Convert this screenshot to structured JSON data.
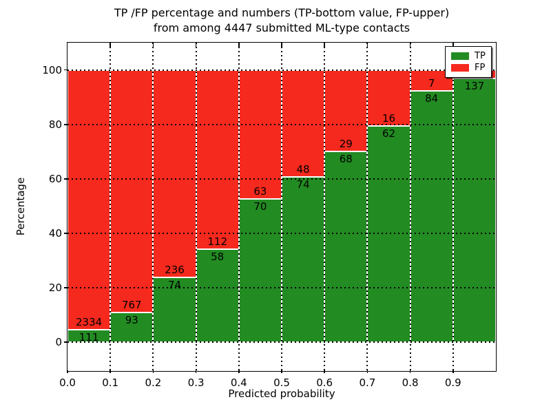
{
  "figure": {
    "title_line1": "TP /FP percentage and numbers (TP-bottom value, FP-upper)",
    "title_line2": "from among 4447 submitted ML-type contacts",
    "xlabel": "Predicted probability",
    "ylabel": "Percentage"
  },
  "colors": {
    "tp_green": "#228b22",
    "fp_red": "#f5291d",
    "bar_edge": "#ffffff",
    "grid": "#000000",
    "background": "#ffffff"
  },
  "legend": {
    "position": "upper right",
    "items": [
      {
        "label": "TP",
        "color": "#228b22"
      },
      {
        "label": "FP",
        "color": "#f5291d"
      }
    ]
  },
  "chart_data": {
    "type": "bar",
    "stacked": true,
    "normalized": "each bin stacks to 100%",
    "title": "TP /FP percentage and numbers (TP-bottom value, FP-upper) from among 4447 submitted ML-type contacts",
    "xlabel": "Predicted probability",
    "ylabel": "Percentage",
    "total_contacts": 4447,
    "x_tick_labels": [
      "0.0",
      "0.1",
      "0.2",
      "0.3",
      "0.4",
      "0.5",
      "0.6",
      "0.7",
      "0.8",
      "0.9"
    ],
    "y_tick_values": [
      0,
      20,
      40,
      60,
      80,
      100
    ],
    "xlim": [
      0.0,
      1.0
    ],
    "ylim": [
      -10,
      110
    ],
    "bin_width": 0.1,
    "grid": "dotted black, drawn above bars",
    "categories": [
      "0.0-0.1",
      "0.1-0.2",
      "0.2-0.3",
      "0.3-0.4",
      "0.4-0.5",
      "0.5-0.6",
      "0.6-0.7",
      "0.7-0.8",
      "0.8-0.9",
      "0.9-1.0"
    ],
    "series": [
      {
        "name": "TP",
        "color": "#228b22",
        "counts": [
          111,
          93,
          74,
          58,
          70,
          74,
          68,
          62,
          84,
          137
        ],
        "pct": [
          4.5,
          10.8,
          23.9,
          34.1,
          52.6,
          60.7,
          70.1,
          79.5,
          92.3,
          97.0
        ]
      },
      {
        "name": "FP",
        "color": "#f5291d",
        "counts": [
          2334,
          767,
          236,
          112,
          63,
          48,
          29,
          16,
          7,
          null
        ],
        "pct": [
          95.5,
          89.2,
          76.1,
          65.9,
          47.4,
          39.3,
          29.9,
          20.5,
          7.7,
          3.0
        ]
      }
    ]
  }
}
